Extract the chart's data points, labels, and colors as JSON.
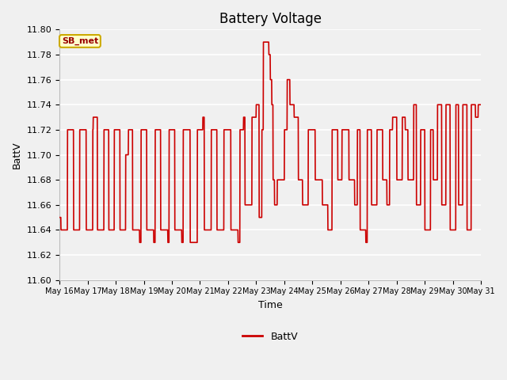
{
  "title": "Battery Voltage",
  "xlabel": "Time",
  "ylabel": "BattV",
  "ylim": [
    11.6,
    11.8
  ],
  "yticks": [
    11.6,
    11.62,
    11.64,
    11.66,
    11.68,
    11.7,
    11.72,
    11.74,
    11.76,
    11.78,
    11.8
  ],
  "x_labels": [
    "May 16",
    "May 17",
    "May 18",
    "May 19",
    "May 20",
    "May 21",
    "May 22",
    "May 23",
    "May 24",
    "May 25",
    "May 26",
    "May 27",
    "May 28",
    "May 29",
    "May 30",
    "May 31"
  ],
  "line_color": "#cc0000",
  "line_width": 1.2,
  "fig_bg_color": "#f0f0f0",
  "plot_bg_color": "#f0f0f0",
  "grid_color": "#ffffff",
  "legend_label": "BattV",
  "annotation_text": "SB_met",
  "annotation_bg": "#ffffcc",
  "annotation_border": "#ccaa00",
  "annotation_text_color": "#990000",
  "annotation_fontsize": 8,
  "title_fontsize": 12,
  "axis_label_fontsize": 9,
  "tick_fontsize": 8,
  "legend_fontsize": 9
}
